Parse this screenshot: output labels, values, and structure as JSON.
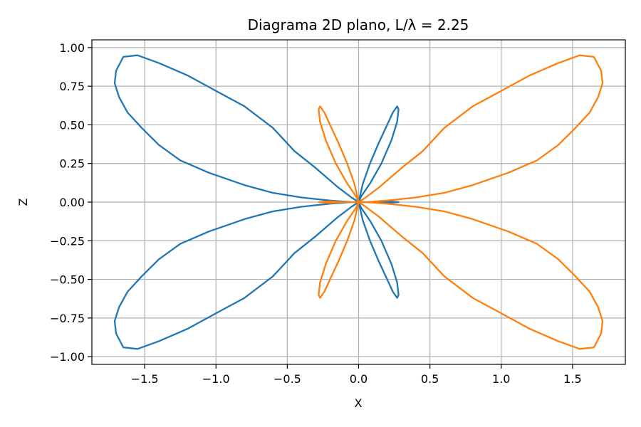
{
  "chart_data": {
    "type": "line",
    "title": "Diagrama 2D plano, L/λ = 2.25",
    "xlabel": "X",
    "ylabel": "Z",
    "xlim": [
      -1.87,
      1.87
    ],
    "ylim": [
      -1.05,
      1.05
    ],
    "grid": true,
    "x_ticks": [
      -1.5,
      -1.0,
      -0.5,
      0.0,
      0.5,
      1.0,
      1.5
    ],
    "x_tick_labels": [
      "−1.5",
      "−1.0",
      "−0.5",
      "0.0",
      "0.5",
      "1.0",
      "1.5"
    ],
    "y_ticks": [
      -1.0,
      -0.75,
      -0.5,
      -0.25,
      0.0,
      0.25,
      0.5,
      0.75,
      1.0
    ],
    "y_tick_labels": [
      "−1.00",
      "−0.75",
      "−0.50",
      "−0.25",
      "0.00",
      "0.25",
      "0.50",
      "0.75",
      "1.00"
    ],
    "series": [
      {
        "color": "#1f77b4",
        "x": [
          0.0,
          -0.05,
          -0.15,
          -0.3,
          -0.45,
          -0.6,
          -0.8,
          -1.0,
          -1.2,
          -1.4,
          -1.55,
          -1.65,
          -1.7,
          -1.71,
          -1.68,
          -1.62,
          -1.52,
          -1.4,
          -1.25,
          -1.05,
          -0.8,
          -0.6,
          -0.4,
          -0.2,
          -0.05,
          0.0,
          -0.05,
          -0.2,
          -0.4,
          -0.6,
          -0.8,
          -1.05,
          -1.25,
          -1.4,
          -1.52,
          -1.62,
          -1.68,
          -1.71,
          -1.7,
          -1.65,
          -1.55,
          -1.4,
          -1.2,
          -1.0,
          -0.8,
          -0.6,
          -0.45,
          -0.3,
          -0.15,
          -0.05,
          0.0,
          0.0,
          0.03,
          0.08,
          0.14,
          0.2,
          0.24,
          0.27,
          0.28,
          0.27,
          0.23,
          0.16,
          0.08,
          0.02,
          0.0,
          0.0,
          0.02,
          0.08,
          0.16,
          0.23,
          0.27,
          0.28,
          0.27,
          0.24,
          0.2,
          0.14,
          0.08,
          0.03,
          0.0,
          0.0,
          0.1,
          0.2,
          0.28,
          0.2,
          0.1,
          0.0
        ],
        "y": [
          0.0,
          0.03,
          0.1,
          0.22,
          0.33,
          0.48,
          0.62,
          0.72,
          0.82,
          0.9,
          0.95,
          0.94,
          0.85,
          0.77,
          0.68,
          0.58,
          0.48,
          0.37,
          0.27,
          0.19,
          0.11,
          0.06,
          0.03,
          0.01,
          0.0,
          0.0,
          0.0,
          -0.01,
          -0.03,
          -0.06,
          -0.11,
          -0.19,
          -0.27,
          -0.37,
          -0.48,
          -0.58,
          -0.68,
          -0.77,
          -0.85,
          -0.94,
          -0.95,
          -0.9,
          -0.82,
          -0.72,
          -0.62,
          -0.48,
          -0.33,
          -0.22,
          -0.1,
          -0.03,
          0.0,
          0.0,
          0.12,
          0.25,
          0.38,
          0.5,
          0.58,
          0.62,
          0.6,
          0.52,
          0.4,
          0.25,
          0.12,
          0.04,
          0.0,
          0.0,
          -0.04,
          -0.12,
          -0.25,
          -0.4,
          -0.52,
          -0.6,
          -0.62,
          -0.58,
          -0.5,
          -0.38,
          -0.25,
          -0.12,
          0.0,
          0.0,
          0.0,
          0.005,
          0.0,
          -0.005,
          0.0,
          0.0
        ]
      },
      {
        "color": "#ff7f0e",
        "x": [
          0.0,
          0.05,
          0.15,
          0.3,
          0.45,
          0.6,
          0.8,
          1.0,
          1.2,
          1.4,
          1.55,
          1.65,
          1.7,
          1.71,
          1.68,
          1.62,
          1.52,
          1.4,
          1.25,
          1.05,
          0.8,
          0.6,
          0.4,
          0.2,
          0.05,
          0.0,
          0.05,
          0.2,
          0.4,
          0.6,
          0.8,
          1.05,
          1.25,
          1.4,
          1.52,
          1.62,
          1.68,
          1.71,
          1.7,
          1.65,
          1.55,
          1.4,
          1.2,
          1.0,
          0.8,
          0.6,
          0.45,
          0.3,
          0.15,
          0.05,
          0.0,
          0.0,
          -0.03,
          -0.08,
          -0.14,
          -0.2,
          -0.24,
          -0.27,
          -0.28,
          -0.27,
          -0.23,
          -0.16,
          -0.08,
          -0.02,
          0.0,
          0.0,
          -0.02,
          -0.08,
          -0.16,
          -0.23,
          -0.27,
          -0.28,
          -0.27,
          -0.24,
          -0.2,
          -0.14,
          -0.08,
          -0.03,
          0.0,
          0.0,
          -0.1,
          -0.2,
          -0.28,
          -0.2,
          -0.1,
          0.0
        ],
        "y": [
          0.0,
          0.03,
          0.1,
          0.22,
          0.33,
          0.48,
          0.62,
          0.72,
          0.82,
          0.9,
          0.95,
          0.94,
          0.85,
          0.77,
          0.68,
          0.58,
          0.48,
          0.37,
          0.27,
          0.19,
          0.11,
          0.06,
          0.03,
          0.01,
          0.0,
          0.0,
          0.0,
          -0.01,
          -0.03,
          -0.06,
          -0.11,
          -0.19,
          -0.27,
          -0.37,
          -0.48,
          -0.58,
          -0.68,
          -0.77,
          -0.85,
          -0.94,
          -0.95,
          -0.9,
          -0.82,
          -0.72,
          -0.62,
          -0.48,
          -0.33,
          -0.22,
          -0.1,
          -0.03,
          0.0,
          0.0,
          0.12,
          0.25,
          0.38,
          0.5,
          0.58,
          0.62,
          0.6,
          0.52,
          0.4,
          0.25,
          0.12,
          0.04,
          0.0,
          0.0,
          -0.04,
          -0.12,
          -0.25,
          -0.4,
          -0.52,
          -0.6,
          -0.62,
          -0.58,
          -0.5,
          -0.38,
          -0.25,
          -0.12,
          0.0,
          0.0,
          0.0,
          0.005,
          0.0,
          -0.005,
          0.0,
          0.0
        ]
      }
    ]
  }
}
